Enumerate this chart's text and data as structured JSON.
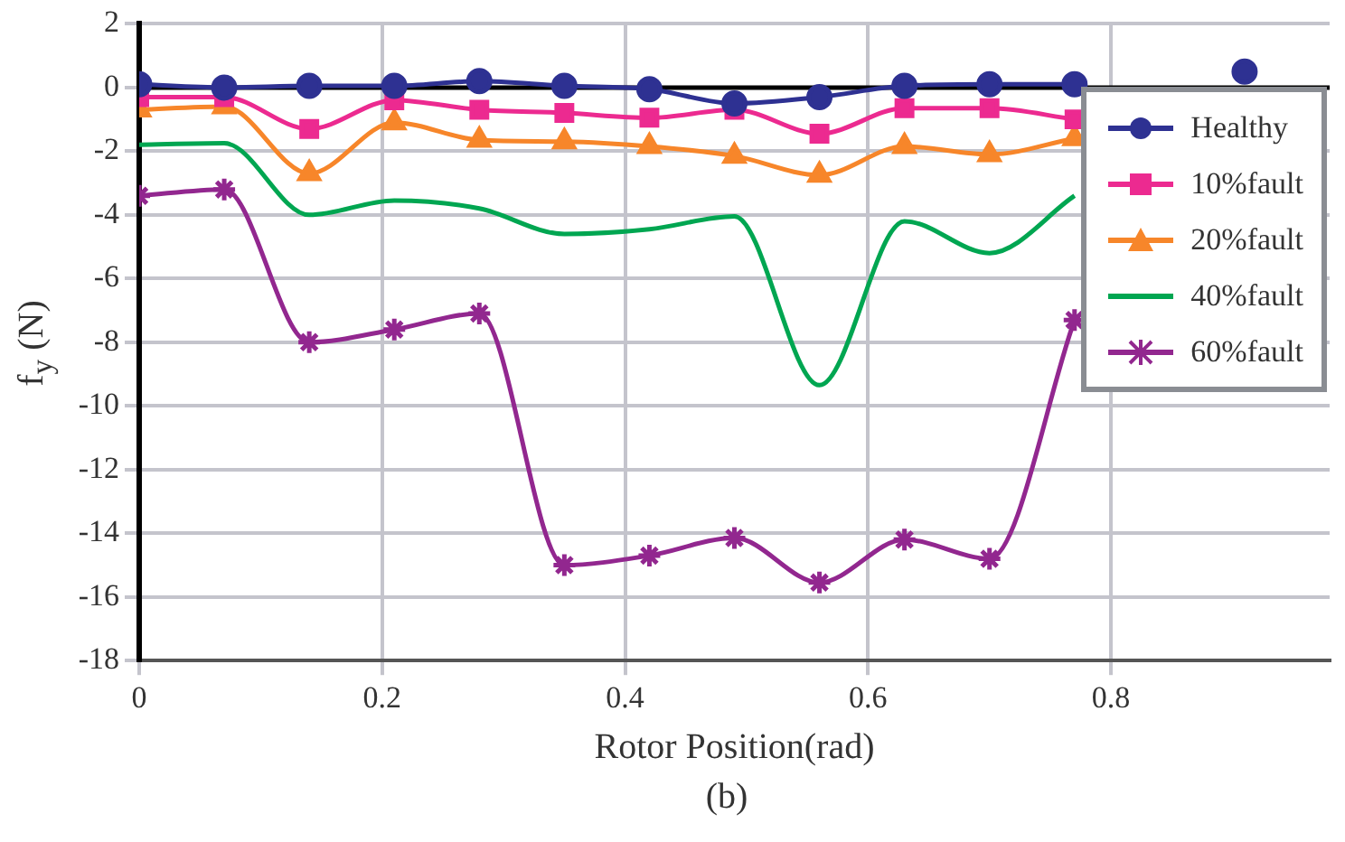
{
  "chart_data": {
    "type": "line",
    "xlabel": "Rotor Position(rad)",
    "ylabel": "f$_{y}$ (N)",
    "annotations": [
      "(b)"
    ],
    "x": [
      0,
      0.07,
      0.14,
      0.21,
      0.28,
      0.35,
      0.42,
      0.49,
      0.56,
      0.63,
      0.7,
      0.77,
      0.84,
      0.91
    ],
    "series": [
      {
        "name": "Healthy",
        "color": "#2e3192",
        "marker": "circle",
        "values": [
          0.1,
          0.0,
          0.05,
          0.05,
          0.2,
          0.05,
          -0.05,
          -0.5,
          -0.3,
          0.05,
          0.1,
          0.1,
          null,
          0.5
        ]
      },
      {
        "name": "10%fault",
        "color": "#ec2a90",
        "marker": "square",
        "values": [
          -0.3,
          -0.3,
          -1.3,
          -0.4,
          -0.7,
          -0.8,
          -0.95,
          -0.7,
          -1.45,
          -0.65,
          -0.65,
          -1.0,
          null,
          null
        ]
      },
      {
        "name": "20%fault",
        "color": "#f7862a",
        "marker": "triangle",
        "values": [
          -0.7,
          -0.6,
          -2.7,
          -1.1,
          -1.65,
          -1.7,
          -1.85,
          -2.15,
          -2.75,
          -1.85,
          -2.1,
          -1.6,
          null,
          null
        ]
      },
      {
        "name": "40%fault",
        "color": "#00a651",
        "marker": "none",
        "values": [
          -1.8,
          -1.75,
          -4.0,
          -3.55,
          -3.8,
          -4.6,
          -4.45,
          -4.05,
          -9.35,
          -4.2,
          -5.2,
          -3.4,
          null,
          null
        ]
      },
      {
        "name": "60%fault",
        "color": "#92278f",
        "marker": "cross",
        "values": [
          -3.4,
          -3.2,
          -8.0,
          -7.6,
          -7.1,
          -15.0,
          -14.7,
          -14.15,
          -15.55,
          -14.2,
          -14.8,
          -7.3,
          null,
          null
        ]
      }
    ],
    "xlim": [
      0,
      0.98
    ],
    "xticks": [
      0,
      0.2,
      0.4,
      0.6,
      0.8
    ],
    "ylim": [
      -18,
      2
    ],
    "yticks": [
      -18,
      -16,
      -14,
      -12,
      -10,
      -8,
      -6,
      -4,
      -2,
      0,
      2
    ],
    "ref_lines": [
      {
        "axis": "y",
        "value": 0,
        "color": "#000000"
      }
    ],
    "grid": true,
    "legend": "top right"
  }
}
